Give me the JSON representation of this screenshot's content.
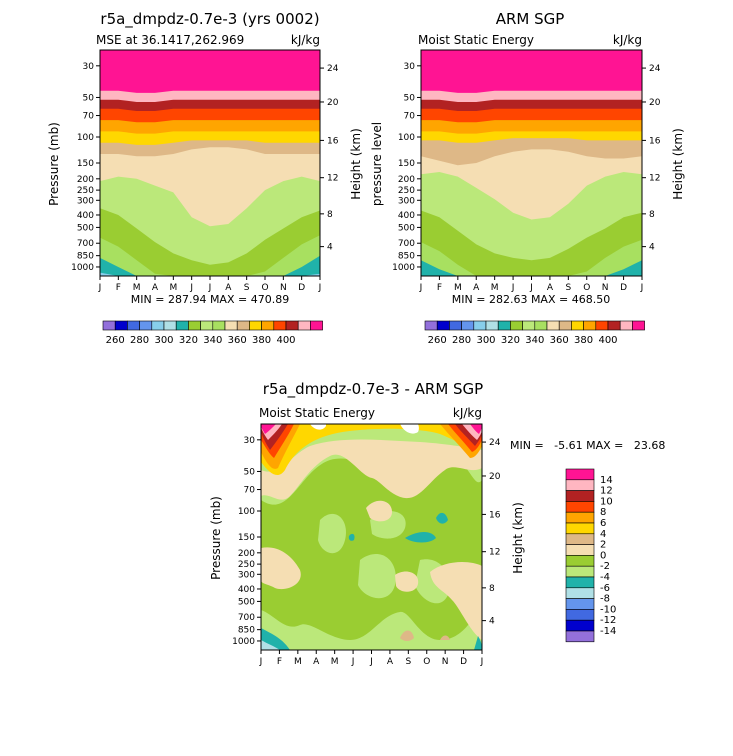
{
  "chart_data": [
    {
      "type": "contour",
      "title": "r5a_dmpdz-0.7e-3 (yrs 0002)",
      "subtitle_left": "MSE at 36.1417,262.969",
      "units": "kJ/kg",
      "ylabel": "Pressure (mb)",
      "ylabel_right": "Height (km)",
      "stats": "MIN = 287.94 MAX = 470.89",
      "months": [
        "J",
        "F",
        "M",
        "A",
        "M",
        "J",
        "J",
        "A",
        "S",
        "O",
        "N",
        "D",
        "J"
      ],
      "pressure_ticks": [
        "30",
        "50",
        "70",
        "100",
        "150",
        "200",
        "250",
        "300",
        "400",
        "500",
        "700",
        "850",
        "1000"
      ],
      "height_ticks": [
        "24",
        "20",
        "16",
        "12",
        "8",
        "4"
      ],
      "colorbar_labels": [
        "260",
        "280",
        "300",
        "320",
        "340",
        "360",
        "380",
        "400"
      ],
      "boundaries": [
        {
          "level": 400,
          "y": [
            0.18,
            0.18,
            0.19,
            0.19,
            0.18,
            0.18,
            0.18,
            0.18,
            0.18,
            0.18,
            0.18,
            0.18,
            0.18
          ]
        },
        {
          "level": 390,
          "y": [
            0.22,
            0.22,
            0.23,
            0.23,
            0.22,
            0.22,
            0.22,
            0.22,
            0.22,
            0.22,
            0.22,
            0.22,
            0.22
          ]
        },
        {
          "level": 380,
          "y": [
            0.26,
            0.26,
            0.27,
            0.27,
            0.26,
            0.26,
            0.26,
            0.26,
            0.26,
            0.26,
            0.26,
            0.26,
            0.26
          ]
        },
        {
          "level": 370,
          "y": [
            0.31,
            0.31,
            0.32,
            0.32,
            0.31,
            0.31,
            0.31,
            0.31,
            0.31,
            0.31,
            0.31,
            0.31,
            0.31
          ]
        },
        {
          "level": 360,
          "y": [
            0.36,
            0.36,
            0.37,
            0.37,
            0.36,
            0.36,
            0.36,
            0.36,
            0.36,
            0.36,
            0.36,
            0.36,
            0.36
          ]
        },
        {
          "level": 350,
          "y": [
            0.41,
            0.41,
            0.42,
            0.42,
            0.41,
            0.4,
            0.4,
            0.4,
            0.4,
            0.41,
            0.41,
            0.41,
            0.41
          ]
        },
        {
          "level": 340,
          "y": [
            0.46,
            0.46,
            0.47,
            0.47,
            0.46,
            0.44,
            0.43,
            0.43,
            0.44,
            0.46,
            0.46,
            0.46,
            0.46
          ]
        },
        {
          "level": 330,
          "y": [
            0.58,
            0.56,
            0.57,
            0.6,
            0.63,
            0.74,
            0.78,
            0.77,
            0.7,
            0.62,
            0.58,
            0.56,
            0.58
          ]
        },
        {
          "level": 320,
          "y": [
            0.7,
            0.73,
            0.79,
            0.85,
            0.9,
            0.93,
            0.95,
            0.94,
            0.9,
            0.84,
            0.79,
            0.74,
            0.71
          ]
        },
        {
          "level": 310,
          "y": [
            0.83,
            0.87,
            0.93,
            0.99,
            1.0,
            1.0,
            1.0,
            1.0,
            1.0,
            0.98,
            0.92,
            0.86,
            0.82
          ]
        },
        {
          "level": 300,
          "y": [
            0.92,
            0.96,
            1.0,
            1.0,
            1.0,
            1.0,
            1.0,
            1.0,
            1.0,
            1.0,
            1.0,
            0.96,
            0.91
          ]
        },
        {
          "level": 290,
          "y": [
            0.985,
            1.0,
            1.0,
            1.0,
            1.0,
            1.0,
            1.0,
            1.0,
            1.0,
            1.0,
            1.0,
            1.0,
            0.99
          ]
        }
      ]
    },
    {
      "type": "contour",
      "title": "ARM SGP",
      "subtitle_left": "Moist Static Energy",
      "units": "kJ/kg",
      "ylabel": "pressure level",
      "ylabel_right": "Height (km)",
      "stats": "MIN = 282.63 MAX = 468.50",
      "months": [
        "J",
        "F",
        "M",
        "A",
        "M",
        "J",
        "J",
        "A",
        "S",
        "O",
        "N",
        "D",
        "J"
      ],
      "pressure_ticks": [
        "30",
        "50",
        "70",
        "100",
        "150",
        "200",
        "250",
        "300",
        "400",
        "500",
        "700",
        "850",
        "1000"
      ],
      "height_ticks": [
        "24",
        "20",
        "16",
        "12",
        "8",
        "4"
      ],
      "colorbar_labels": [
        "260",
        "280",
        "300",
        "320",
        "340",
        "360",
        "380",
        "400"
      ],
      "boundaries": [
        {
          "level": 400,
          "y": [
            0.18,
            0.18,
            0.19,
            0.19,
            0.18,
            0.18,
            0.18,
            0.18,
            0.18,
            0.18,
            0.18,
            0.18,
            0.18
          ]
        },
        {
          "level": 390,
          "y": [
            0.22,
            0.22,
            0.23,
            0.23,
            0.22,
            0.22,
            0.22,
            0.22,
            0.22,
            0.22,
            0.22,
            0.22,
            0.22
          ]
        },
        {
          "level": 380,
          "y": [
            0.26,
            0.26,
            0.27,
            0.27,
            0.26,
            0.26,
            0.26,
            0.26,
            0.26,
            0.26,
            0.26,
            0.26,
            0.26
          ]
        },
        {
          "level": 370,
          "y": [
            0.31,
            0.31,
            0.32,
            0.32,
            0.31,
            0.31,
            0.31,
            0.31,
            0.31,
            0.31,
            0.31,
            0.31,
            0.31
          ]
        },
        {
          "level": 360,
          "y": [
            0.36,
            0.36,
            0.37,
            0.37,
            0.36,
            0.36,
            0.36,
            0.36,
            0.36,
            0.36,
            0.36,
            0.36,
            0.36
          ]
        },
        {
          "level": 350,
          "y": [
            0.4,
            0.4,
            0.41,
            0.41,
            0.4,
            0.39,
            0.39,
            0.39,
            0.39,
            0.4,
            0.4,
            0.4,
            0.4
          ]
        },
        {
          "level": 340,
          "y": [
            0.47,
            0.49,
            0.51,
            0.5,
            0.47,
            0.45,
            0.44,
            0.44,
            0.45,
            0.47,
            0.48,
            0.48,
            0.47
          ]
        },
        {
          "level": 330,
          "y": [
            0.55,
            0.54,
            0.56,
            0.61,
            0.66,
            0.72,
            0.75,
            0.74,
            0.68,
            0.6,
            0.56,
            0.54,
            0.55
          ]
        },
        {
          "level": 320,
          "y": [
            0.71,
            0.74,
            0.8,
            0.86,
            0.9,
            0.92,
            0.93,
            0.92,
            0.88,
            0.83,
            0.79,
            0.74,
            0.72
          ]
        },
        {
          "level": 310,
          "y": [
            0.85,
            0.89,
            0.95,
            1.0,
            1.0,
            1.0,
            1.0,
            1.0,
            1.0,
            0.98,
            0.92,
            0.87,
            0.84
          ]
        },
        {
          "level": 300,
          "y": [
            0.93,
            0.97,
            1.0,
            1.0,
            1.0,
            1.0,
            1.0,
            1.0,
            1.0,
            1.0,
            1.0,
            0.97,
            0.93
          ]
        }
      ]
    },
    {
      "type": "contour-difference",
      "title": "r5a_dmpdz-0.7e-3 - ARM SGP",
      "subtitle_left": "Moist Static Energy",
      "units": "kJ/kg",
      "ylabel": "Pressure (mb)",
      "ylabel_right": "Height (km)",
      "stats": "MIN =   -5.61 MAX =   23.68",
      "months": [
        "J",
        "F",
        "M",
        "A",
        "M",
        "J",
        "J",
        "A",
        "S",
        "O",
        "N",
        "D",
        "J"
      ],
      "pressure_ticks": [
        "30",
        "50",
        "70",
        "100",
        "150",
        "200",
        "250",
        "300",
        "400",
        "500",
        "700",
        "850",
        "1000"
      ],
      "height_ticks": [
        "24",
        "20",
        "16",
        "12",
        "8",
        "4"
      ],
      "colorbar_labels": [
        "14",
        "12",
        "10",
        "8",
        "6",
        "4",
        "2",
        "0",
        "-2",
        "-4",
        "-6",
        "-8",
        "-10",
        "-12",
        "-14"
      ]
    }
  ],
  "palette": {
    "p260": "#9370db",
    "p265": "#0000cd",
    "p270": "#4169e1",
    "p275": "#6495ed",
    "p280": "#87ceeb",
    "p285": "#b0e0e6",
    "p290": "#20b2aa",
    "p300": "#a8e060",
    "p310": "#9acd32",
    "p320": "#bbe87a",
    "p330": "#f5deb3",
    "p340": "#deb887",
    "p350": "#ffd700",
    "p360": "#ffa500",
    "p370": "#ff4500",
    "p380": "#b22222",
    "p390": "#ffb6c1",
    "p400": "#ff1493"
  }
}
